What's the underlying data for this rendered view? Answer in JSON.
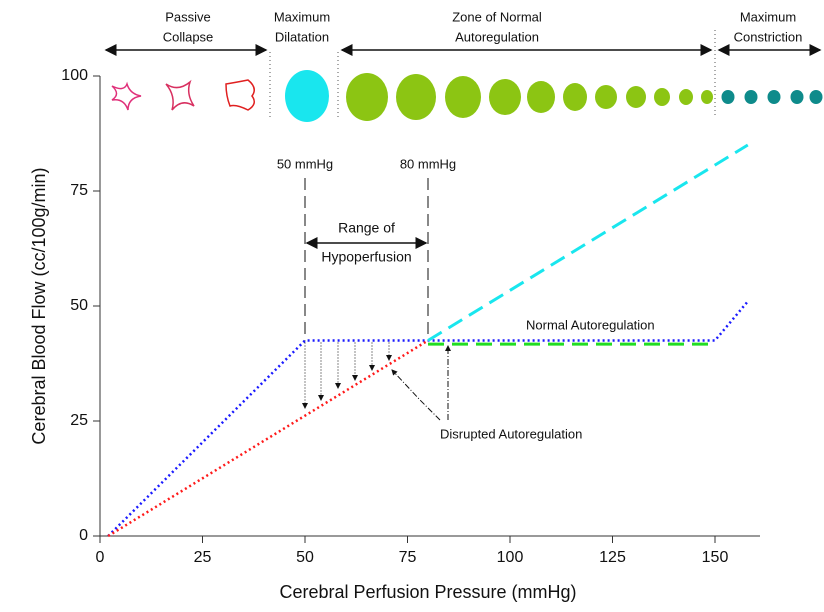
{
  "chart_data": {
    "type": "line",
    "xlabel": "Cerebral Perfusion Pressure (mmHg)",
    "ylabel": "Cerebral Blood Flow (cc/100g/min)",
    "xlim": [
      0,
      160
    ],
    "xticks": [
      0,
      25,
      50,
      75,
      100,
      125,
      150
    ],
    "ylim": [
      0,
      100
    ],
    "yticks": [
      0,
      25,
      50,
      75,
      100
    ],
    "series": [
      {
        "name": "Normal Autoregulation",
        "color": "#1a1aff",
        "style": "dotted",
        "x": [
          2,
          50,
          150,
          158
        ],
        "values": [
          0,
          42.5,
          42.5,
          51
        ]
      },
      {
        "name": "Disrupted Autoregulation",
        "color": "#ff1a1a",
        "style": "dotted",
        "x": [
          2,
          80
        ],
        "values": [
          0,
          42.5
        ]
      },
      {
        "color": "#19e6ee",
        "style": "dashed",
        "x": [
          80,
          158
        ],
        "values": [
          42.5,
          85
        ]
      },
      {
        "color": "#22dd22",
        "style": "dashed",
        "x": [
          80,
          150
        ],
        "values": [
          41.7,
          41.7
        ]
      }
    ],
    "markers": [
      {
        "x": 50,
        "label": "50 mmHg"
      },
      {
        "x": 80,
        "label": "80 mmHg"
      }
    ],
    "range_label": [
      "Range of",
      "Hypoperfusion"
    ],
    "zones": [
      [
        "Passive",
        "Collapse"
      ],
      [
        "Maximum",
        "Dilatation"
      ],
      [
        "Zone of Normal",
        "Autoregulation"
      ],
      [
        "Maximum",
        "Constriction"
      ]
    ]
  }
}
